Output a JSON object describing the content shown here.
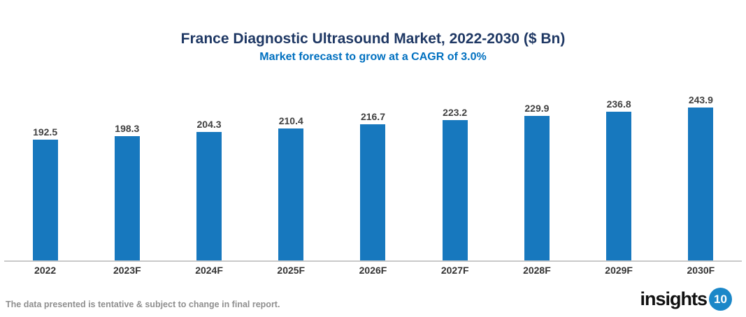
{
  "header": {
    "title": "France Diagnostic Ultrasound Market, 2022-2030 ($ Bn)",
    "subtitle": "Market forecast to grow at a CAGR of 3.0%"
  },
  "chart_data": {
    "type": "bar",
    "title": "France Diagnostic Ultrasound Market, 2022-2030 ($ Bn)",
    "subtitle": "Market forecast to grow at a CAGR of 3.0%",
    "categories": [
      "2022",
      "2023F",
      "2024F",
      "2025F",
      "2026F",
      "2027F",
      "2028F",
      "2029F",
      "2030F"
    ],
    "values": [
      192.5,
      198.3,
      204.3,
      210.4,
      216.7,
      223.2,
      229.9,
      236.8,
      243.9
    ],
    "xlabel": "",
    "ylabel": "",
    "baseline": 0,
    "y_axis_visible": false,
    "grid": false,
    "legend": false,
    "value_labels_shown": true,
    "bar_color": "#1778BE"
  },
  "footer": {
    "disclaimer": "The data presented is tentative & subject to change in final report.",
    "logo": {
      "text": "insights",
      "badge": "10"
    }
  },
  "colors": {
    "title": "#1F3864",
    "subtitle": "#0070C0",
    "bar": "#1778BE",
    "value_label": "#404040",
    "axis_line": "#C9C9C9",
    "x_tick_label": "#333333",
    "disclaimer": "#8F8F8F",
    "logo_text": "#111111",
    "logo_badge_bg": "#1B87C8",
    "logo_badge_text": "#FFFFFF"
  }
}
